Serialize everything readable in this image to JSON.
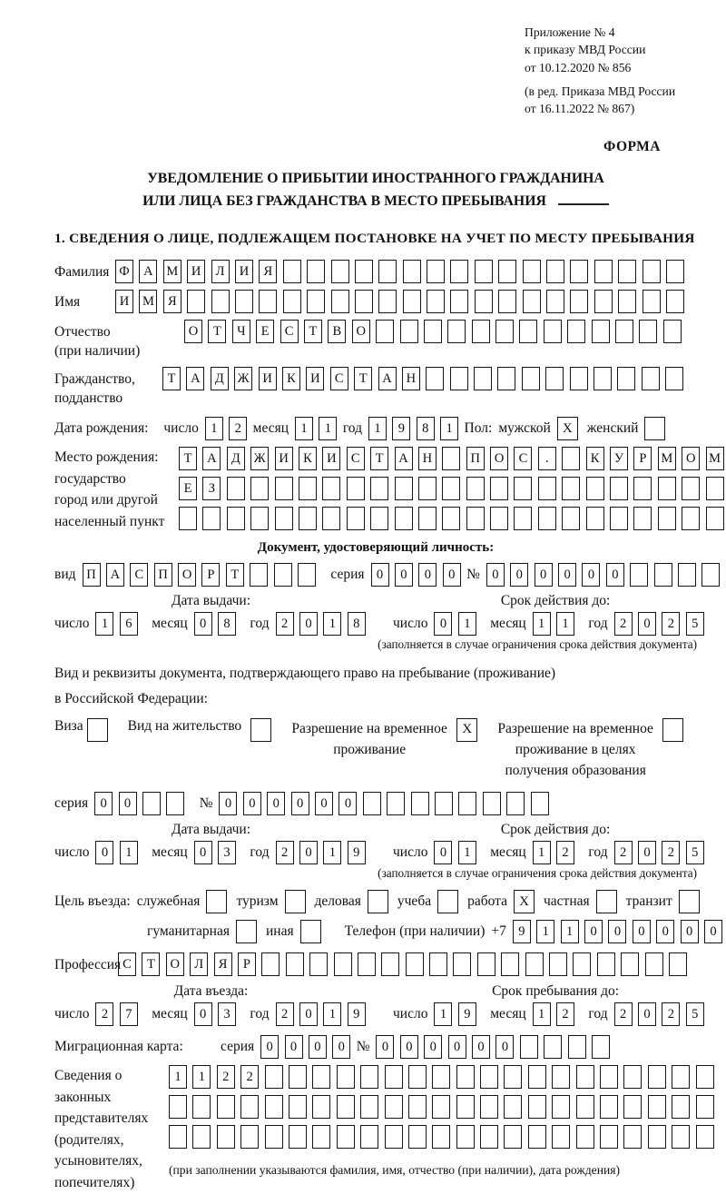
{
  "header": {
    "line1": "Приложение № 4",
    "line2": "к приказу МВД России",
    "line3": "от 10.12.2020 № 856",
    "line4": "(в ред. Приказа МВД России",
    "line5": "от 16.11.2022 № 867)",
    "form_label": "ФОРМА"
  },
  "title": {
    "line1": "УВЕДОМЛЕНИЕ О ПРИБЫТИИ ИНОСТРАННОГО ГРАЖДАНИНА",
    "line2": "ИЛИ ЛИЦА БЕЗ ГРАЖДАНСТВА В МЕСТО ПРЕБЫВАНИЯ"
  },
  "section1": {
    "title": "1. СВЕДЕНИЯ О ЛИЦЕ, ПОДЛЕЖАЩЕМ ПОСТАНОВКЕ НА УЧЕТ ПО МЕСТУ ПРЕБЫВАНИЯ"
  },
  "labels": {
    "day": "число",
    "month": "месяц",
    "year": "год",
    "seriya": "серия",
    "num": "№"
  },
  "marks": {
    "checked": "X"
  },
  "fields": {
    "surname": {
      "label": "Фамилия",
      "t": "ФАМИЛИЯ",
      "n": 24
    },
    "given_name": {
      "label": "Имя",
      "t": "ИМЯ",
      "n": 24
    },
    "patronymic": {
      "label1": "Отчество",
      "label2": "(при наличии)",
      "t": "ОТЧЕСТВО",
      "n": 21
    },
    "citizenship": {
      "label1": "Гражданство,",
      "label2": "подданство",
      "t": "ТАДЖИКИСТАН",
      "n": 22
    }
  },
  "birth": {
    "label": "Дата рождения:",
    "d": "12",
    "m": "11",
    "y": "1981",
    "sex_label": "Пол:",
    "male_label": "мужской",
    "female_label": "женский",
    "male_checked": true,
    "female_checked": false
  },
  "birthplace": {
    "label1": "Место рождения:",
    "label2": "государство",
    "label3": "город или другой",
    "label4": "населенный пункт",
    "row1": {
      "t": "ТАДЖИКИСТАН ПОС. КУРМОМБ",
      "n": 24
    },
    "row2": {
      "t": "ЕЗ",
      "n": 24
    },
    "row3": {
      "t": "",
      "n": 24
    }
  },
  "identity_doc": {
    "title": "Документ, удостоверяющий личность:",
    "vid_label": "вид",
    "vid": {
      "t": "ПАСПОРТ",
      "n": 10
    },
    "seriya": {
      "t": "0000",
      "n": 4
    },
    "num": {
      "t": "000000",
      "n": 11
    },
    "issue_title": "Дата выдачи:",
    "issue": {
      "d": "16",
      "m": "08",
      "y": "2018"
    },
    "expiry_title": "Срок действия до:",
    "expiry": {
      "d": "01",
      "m": "11",
      "y": "2025"
    },
    "note": "(заполняется в случае ограничения срока действия документа)"
  },
  "residence_doc": {
    "line1": "Вид и реквизиты документа, подтверждающего право на пребывание (проживание)",
    "line2": "в Российской Федерации:",
    "options": [
      {
        "label": "Виза",
        "checked": false
      },
      {
        "label": "Вид на жительство",
        "checked": false
      },
      {
        "label": "Разрешение на временное проживание",
        "checked": true
      },
      {
        "label": "Разрешение на временное проживание в целях получения образования",
        "checked": false
      }
    ],
    "seriya": {
      "t": "00",
      "n": 4
    },
    "num": {
      "t": "000000",
      "n": 14
    },
    "issue_title": "Дата выдачи:",
    "issue": {
      "d": "01",
      "m": "03",
      "y": "2019"
    },
    "expiry_title": "Срок действия до:",
    "expiry": {
      "d": "01",
      "m": "12",
      "y": "2025"
    },
    "note": "(заполняется в случае ограничения срока действия документа)"
  },
  "purpose": {
    "label": "Цель въезда:",
    "options": [
      {
        "label": "служебная",
        "checked": false
      },
      {
        "label": "туризм",
        "checked": false
      },
      {
        "label": "деловая",
        "checked": false
      },
      {
        "label": "учеба",
        "checked": false
      },
      {
        "label": "работа",
        "checked": true
      },
      {
        "label": "частная",
        "checked": false
      },
      {
        "label": "транзит",
        "checked": false
      },
      {
        "label": "гуманитарная",
        "checked": false
      },
      {
        "label": "иная",
        "checked": false
      }
    ],
    "phone_label": "Телефон (при наличии)",
    "phone_prefix": "+7",
    "phone": {
      "t": "911000000",
      "n": 10
    }
  },
  "profession": {
    "label": "Профессия",
    "t": "СТОЛЯР",
    "n": 24
  },
  "entry": {
    "issue_title": "Дата въезда:",
    "issue": {
      "d": "27",
      "m": "03",
      "y": "2019"
    },
    "expiry_title": "Срок пребывания до:",
    "expiry": {
      "d": "19",
      "m": "12",
      "y": "2025"
    }
  },
  "migration_card": {
    "label": "Миграционная карта:",
    "seriya": {
      "t": "0000",
      "n": 4
    },
    "num": {
      "t": "000000",
      "n": 10
    }
  },
  "representatives": {
    "label1": "Сведения о",
    "label2": "законных",
    "label3": "представителях",
    "label4": "(родителях,",
    "label5": "усыновителях,",
    "label6": "попечителях)",
    "row1": {
      "t": "1122",
      "n": 23
    },
    "row2": {
      "t": "",
      "n": 23
    },
    "row3": {
      "t": "",
      "n": 23
    },
    "note": "(при заполнении указываются фамилия, имя, отчество (при наличии), дата рождения)"
  }
}
